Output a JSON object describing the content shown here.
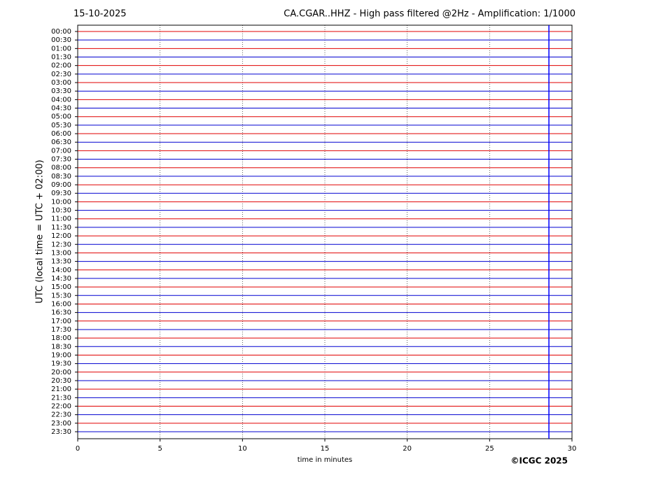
{
  "chart_data": {
    "type": "helicorder",
    "date": "15-10-2025",
    "title": "CA.CGAR..HHZ - High pass filtered @2Hz - Amplification: 1/1000",
    "ylabel": "UTC (local time = UTC + 02:00)",
    "xlabel": "time in minutes",
    "copyright": "©ICGC 2025",
    "categories": [
      "00:00",
      "00:30",
      "01:00",
      "01:30",
      "02:00",
      "02:30",
      "03:00",
      "03:30",
      "04:00",
      "04:30",
      "05:00",
      "05:30",
      "06:00",
      "06:30",
      "07:00",
      "07:30",
      "08:00",
      "08:30",
      "09:00",
      "09:30",
      "10:00",
      "10:30",
      "11:00",
      "11:30",
      "12:00",
      "12:30",
      "13:00",
      "13:30",
      "14:00",
      "14:30",
      "15:00",
      "15:30",
      "16:00",
      "16:30",
      "17:00",
      "17:30",
      "18:00",
      "18:30",
      "19:00",
      "19:30",
      "20:00",
      "20:30",
      "21:00",
      "21:30",
      "22:00",
      "22:30",
      "23:00",
      "23:30"
    ],
    "trace_colors": [
      "#e00000",
      "#0000d0"
    ],
    "xlim": [
      0,
      30
    ],
    "xticks": [
      0,
      5,
      10,
      15,
      20,
      25,
      30
    ],
    "grid": true,
    "marker_x": 28.6,
    "marker_color": "#0000ff"
  }
}
